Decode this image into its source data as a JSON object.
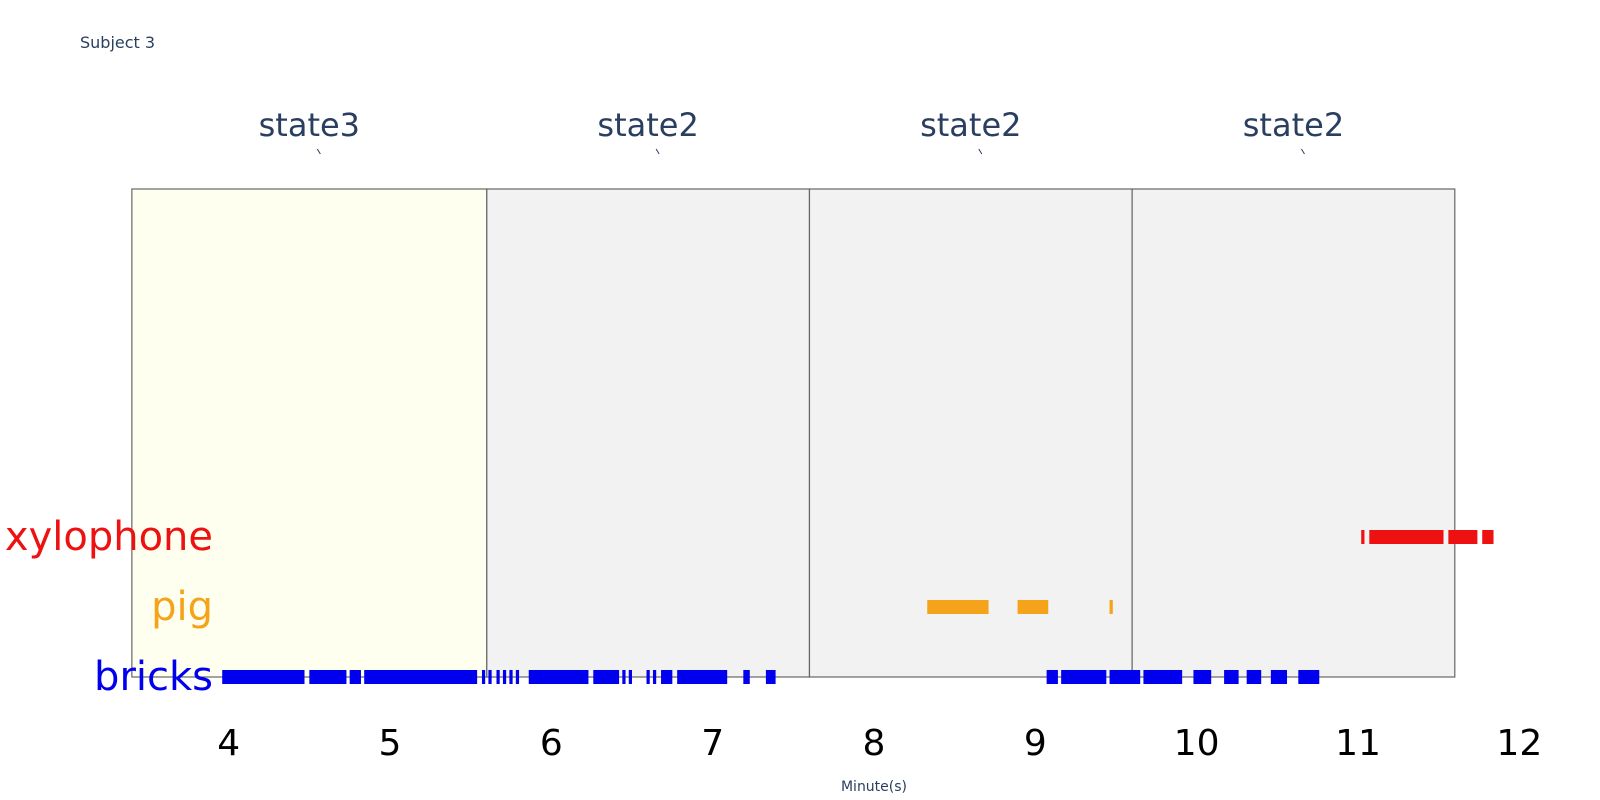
{
  "chart_data": {
    "type": "timeline",
    "title": "Subject 3",
    "xlabel": "Minute(s)",
    "xlim": [
      3.5,
      12.5
    ],
    "x_ticks": [
      4,
      5,
      6,
      7,
      8,
      9,
      10,
      11,
      12
    ],
    "state_segments": [
      {
        "label": "state3",
        "start": 3.4,
        "end": 5.6,
        "fill": "#fffff0"
      },
      {
        "label": "state2",
        "start": 5.6,
        "end": 7.6,
        "fill": "#f2f2f2"
      },
      {
        "label": "state2",
        "start": 7.6,
        "end": 9.6,
        "fill": "#f2f2f2"
      },
      {
        "label": "state2",
        "start": 9.6,
        "end": 11.6,
        "fill": "#f2f2f2"
      }
    ],
    "series": [
      {
        "name": "xylophone",
        "color": "#ee1111",
        "intervals": [
          [
            11.02,
            11.04
          ],
          [
            11.07,
            11.53
          ],
          [
            11.56,
            11.74
          ],
          [
            11.77,
            11.84
          ]
        ]
      },
      {
        "name": "pig",
        "color": "#f5a31a",
        "intervals": [
          [
            8.33,
            8.71
          ],
          [
            8.89,
            9.08
          ],
          [
            9.46,
            9.48
          ]
        ]
      },
      {
        "name": "bricks",
        "color": "#0000ee",
        "intervals": [
          [
            3.96,
            4.47
          ],
          [
            4.5,
            4.73
          ],
          [
            4.75,
            4.82
          ],
          [
            4.84,
            5.54
          ],
          [
            5.57,
            5.59
          ],
          [
            5.61,
            5.63
          ],
          [
            5.66,
            5.68
          ],
          [
            5.7,
            5.72
          ],
          [
            5.74,
            5.76
          ],
          [
            5.78,
            5.8
          ],
          [
            5.86,
            6.23
          ],
          [
            6.26,
            6.42
          ],
          [
            6.44,
            6.46
          ],
          [
            6.48,
            6.5
          ],
          [
            6.59,
            6.61
          ],
          [
            6.63,
            6.65
          ],
          [
            6.68,
            6.75
          ],
          [
            6.78,
            7.09
          ],
          [
            7.19,
            7.23
          ],
          [
            7.33,
            7.39
          ],
          [
            9.07,
            9.14
          ],
          [
            9.16,
            9.44
          ],
          [
            9.46,
            9.65
          ],
          [
            9.67,
            9.91
          ],
          [
            9.98,
            10.09
          ],
          [
            10.17,
            10.26
          ],
          [
            10.31,
            10.4
          ],
          [
            10.46,
            10.56
          ],
          [
            10.63,
            10.76
          ]
        ]
      }
    ]
  }
}
